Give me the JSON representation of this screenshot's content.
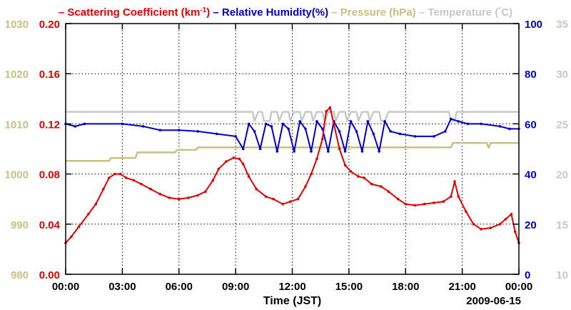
{
  "chart_data": {
    "type": "line",
    "title_entries": [
      {
        "prefix": "– ",
        "text": "Scattering Coefficient (km",
        "sup": "-1",
        "suffix": ")",
        "color": "#e00000"
      },
      {
        "prefix": " – ",
        "text": "Relative Humidity(%)",
        "color": "#0000cc"
      },
      {
        "prefix": " – ",
        "text": "Pressure (hPa)",
        "color": "#c8bf82"
      },
      {
        "prefix": " – ",
        "text": "Temperature (",
        "sup": "°",
        "suffix": "C)",
        "color": "#c8c8c8"
      }
    ],
    "xlabel": "Time (JST)",
    "date": "2009-06-15",
    "x_ticks": [
      "00:00",
      "03:00",
      "06:00",
      "09:00",
      "12:00",
      "15:00",
      "18:00",
      "21:00",
      "00:00"
    ],
    "x_range_hours": [
      0,
      24
    ],
    "axes": {
      "pressure": {
        "color": "#c8bf82",
        "ticks": [
          "980",
          "990",
          "1000",
          "1010",
          "1020",
          "1030"
        ],
        "range": [
          980,
          1030
        ]
      },
      "scattering": {
        "color": "#e00000",
        "ticks": [
          "0.00",
          "0.04",
          "0.08",
          "0.12",
          "0.16",
          "0.20"
        ],
        "range": [
          0,
          0.2
        ]
      },
      "humidity": {
        "color": "#0000cc",
        "ticks": [
          "0",
          "20",
          "40",
          "60",
          "80",
          "100"
        ],
        "range": [
          0,
          100
        ]
      },
      "temperature": {
        "color": "#c8c8c8",
        "ticks": [
          "10",
          "15",
          "20",
          "25",
          "30",
          "35"
        ],
        "range": [
          10,
          35
        ]
      }
    },
    "series": [
      {
        "name": "Scattering Coefficient",
        "axis": "scattering",
        "color": "#e00000",
        "markers": true,
        "points": [
          [
            0,
            0.025
          ],
          [
            0.3,
            0.03
          ],
          [
            0.7,
            0.038
          ],
          [
            1.2,
            0.048
          ],
          [
            1.6,
            0.056
          ],
          [
            2.0,
            0.068
          ],
          [
            2.3,
            0.077
          ],
          [
            2.6,
            0.08
          ],
          [
            2.9,
            0.08
          ],
          [
            3.2,
            0.077
          ],
          [
            3.6,
            0.075
          ],
          [
            4.0,
            0.072
          ],
          [
            4.5,
            0.068
          ],
          [
            5.0,
            0.064
          ],
          [
            5.5,
            0.061
          ],
          [
            6.0,
            0.06
          ],
          [
            6.5,
            0.061
          ],
          [
            7.0,
            0.063
          ],
          [
            7.4,
            0.066
          ],
          [
            7.8,
            0.075
          ],
          [
            8.1,
            0.084
          ],
          [
            8.5,
            0.09
          ],
          [
            8.9,
            0.093
          ],
          [
            9.2,
            0.092
          ],
          [
            9.4,
            0.088
          ],
          [
            9.7,
            0.078
          ],
          [
            10.1,
            0.068
          ],
          [
            10.6,
            0.062
          ],
          [
            11.0,
            0.06
          ],
          [
            11.5,
            0.056
          ],
          [
            11.9,
            0.058
          ],
          [
            12.3,
            0.06
          ],
          [
            12.7,
            0.07
          ],
          [
            13.0,
            0.08
          ],
          [
            13.3,
            0.092
          ],
          [
            13.6,
            0.108
          ],
          [
            13.8,
            0.13
          ],
          [
            14.0,
            0.133
          ],
          [
            14.2,
            0.12
          ],
          [
            14.5,
            0.1
          ],
          [
            14.8,
            0.087
          ],
          [
            15.1,
            0.082
          ],
          [
            15.5,
            0.078
          ],
          [
            15.8,
            0.077
          ],
          [
            16.2,
            0.072
          ],
          [
            16.7,
            0.07
          ],
          [
            17.1,
            0.066
          ],
          [
            17.6,
            0.06
          ],
          [
            18.0,
            0.056
          ],
          [
            18.5,
            0.055
          ],
          [
            19.0,
            0.056
          ],
          [
            19.5,
            0.057
          ],
          [
            20.0,
            0.058
          ],
          [
            20.4,
            0.062
          ],
          [
            20.6,
            0.074
          ],
          [
            20.8,
            0.062
          ],
          [
            21.2,
            0.05
          ],
          [
            21.6,
            0.04
          ],
          [
            22.0,
            0.036
          ],
          [
            22.5,
            0.037
          ],
          [
            23.0,
            0.04
          ],
          [
            23.3,
            0.044
          ],
          [
            23.6,
            0.048
          ],
          [
            23.8,
            0.034
          ],
          [
            24.0,
            0.025
          ]
        ]
      },
      {
        "name": "Relative Humidity",
        "axis": "humidity",
        "color": "#0000cc",
        "markers": true,
        "points": [
          [
            0,
            60
          ],
          [
            0.5,
            59
          ],
          [
            1,
            60
          ],
          [
            3,
            60
          ],
          [
            4.1,
            59
          ],
          [
            5,
            57.5
          ],
          [
            6,
            57.5
          ],
          [
            7,
            57
          ],
          [
            8,
            56
          ],
          [
            9,
            55
          ],
          [
            9.4,
            50
          ],
          [
            9.7,
            60
          ],
          [
            10,
            57
          ],
          [
            10.3,
            50
          ],
          [
            10.6,
            60
          ],
          [
            10.9,
            59
          ],
          [
            11.2,
            49
          ],
          [
            11.5,
            60
          ],
          [
            11.8,
            58
          ],
          [
            12.1,
            49
          ],
          [
            12.4,
            61
          ],
          [
            12.7,
            58
          ],
          [
            13.0,
            49
          ],
          [
            13.3,
            61
          ],
          [
            13.6,
            58
          ],
          [
            13.9,
            49
          ],
          [
            14.2,
            61
          ],
          [
            14.5,
            57
          ],
          [
            14.8,
            49
          ],
          [
            15.1,
            61
          ],
          [
            15.4,
            57
          ],
          [
            15.7,
            49
          ],
          [
            16.0,
            61
          ],
          [
            16.3,
            56
          ],
          [
            16.6,
            49
          ],
          [
            16.9,
            61
          ],
          [
            17.2,
            57
          ],
          [
            17.7,
            56
          ],
          [
            18.5,
            55
          ],
          [
            19.5,
            55
          ],
          [
            20.1,
            57
          ],
          [
            20.4,
            62
          ],
          [
            20.8,
            61
          ],
          [
            21.3,
            60
          ],
          [
            22,
            60
          ],
          [
            23,
            59
          ],
          [
            23.5,
            58
          ],
          [
            24,
            58
          ]
        ]
      },
      {
        "name": "Pressure",
        "axis": "pressure",
        "color": "#c8bf82",
        "markers": false,
        "points": [
          [
            0,
            1002.6
          ],
          [
            2.3,
            1002.6
          ],
          [
            2.4,
            1003.2
          ],
          [
            3.7,
            1003.2
          ],
          [
            3.8,
            1004.3
          ],
          [
            5.8,
            1004.3
          ],
          [
            5.9,
            1004.8
          ],
          [
            6.9,
            1004.8
          ],
          [
            7.0,
            1005.3
          ],
          [
            17.6,
            1005.3
          ],
          [
            17.7,
            1005.3
          ],
          [
            20.4,
            1005.3
          ],
          [
            20.5,
            1006.2
          ],
          [
            22.3,
            1006.2
          ],
          [
            22.4,
            1005.2
          ],
          [
            22.5,
            1006.2
          ],
          [
            24,
            1006.2
          ]
        ]
      },
      {
        "name": "Temperature",
        "axis": "temperature",
        "color": "#c8c8c8",
        "markers": false,
        "points": [
          [
            0,
            26.2
          ],
          [
            9.9,
            26.2
          ],
          [
            10.0,
            25.3
          ],
          [
            10.2,
            26.2
          ],
          [
            10.4,
            26.2
          ],
          [
            10.5,
            25.3
          ],
          [
            10.8,
            25.3
          ],
          [
            10.9,
            26.2
          ],
          [
            11.2,
            26.2
          ],
          [
            11.3,
            25.3
          ],
          [
            11.5,
            26.2
          ],
          [
            11.8,
            26.2
          ],
          [
            11.9,
            25.3
          ],
          [
            12.1,
            26.2
          ],
          [
            12.4,
            26.2
          ],
          [
            12.5,
            25.3
          ],
          [
            12.7,
            26.2
          ],
          [
            13.0,
            26.2
          ],
          [
            13.1,
            25.3
          ],
          [
            13.3,
            26.2
          ],
          [
            13.6,
            26.2
          ],
          [
            13.7,
            25.3
          ],
          [
            13.9,
            26.2
          ],
          [
            14.2,
            26.2
          ],
          [
            14.3,
            25.3
          ],
          [
            14.5,
            26.2
          ],
          [
            14.8,
            26.2
          ],
          [
            14.9,
            25.3
          ],
          [
            15.1,
            26.2
          ],
          [
            15.4,
            26.2
          ],
          [
            15.5,
            25.3
          ],
          [
            15.7,
            26.2
          ],
          [
            16.0,
            26.2
          ],
          [
            16.1,
            25.3
          ],
          [
            16.3,
            26.2
          ],
          [
            16.6,
            26.2
          ],
          [
            16.7,
            25.3
          ],
          [
            16.9,
            25.3
          ],
          [
            17.1,
            26.2
          ],
          [
            20.3,
            26.2
          ],
          [
            20.4,
            25.3
          ],
          [
            20.6,
            25.3
          ],
          [
            20.7,
            26.2
          ],
          [
            24,
            26.2
          ]
        ]
      }
    ],
    "grid": true,
    "legend": "top"
  }
}
